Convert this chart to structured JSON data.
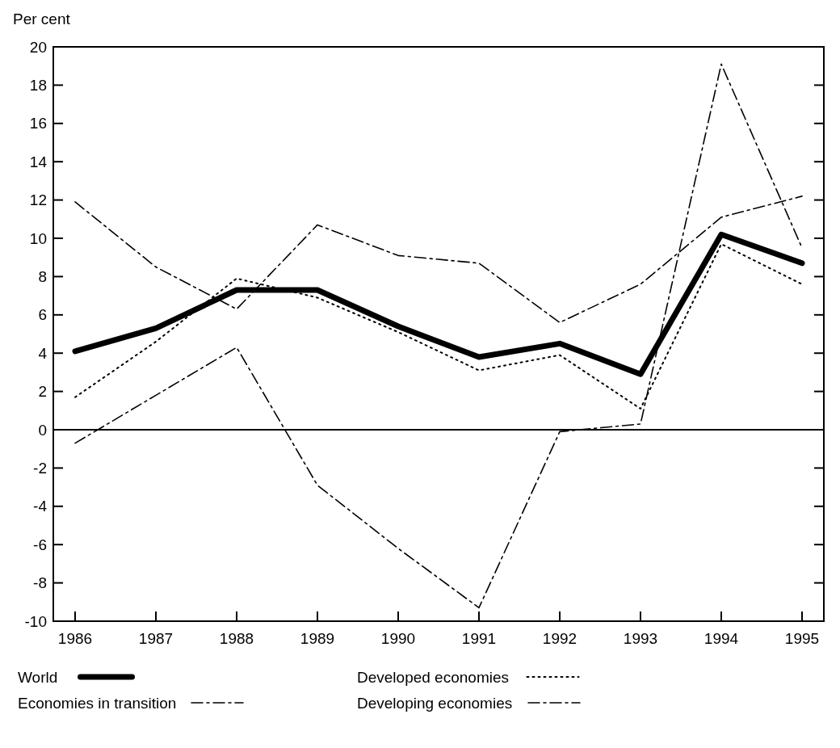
{
  "chart_data": {
    "type": "line",
    "ylabel": "Per cent",
    "categories": [
      "1986",
      "1987",
      "1988",
      "1989",
      "1990",
      "1991",
      "1992",
      "1993",
      "1994",
      "1995"
    ],
    "series": [
      {
        "name": "World",
        "color": "#000000",
        "line_style": "solid",
        "values": [
          4.1,
          5.3,
          7.3,
          7.3,
          5.4,
          3.8,
          4.5,
          2.9,
          10.2,
          8.7
        ]
      },
      {
        "name": "Developed economies",
        "color": "#000000",
        "line_style": "dotted",
        "values": [
          1.7,
          4.6,
          7.9,
          6.9,
          5.1,
          3.1,
          3.9,
          1.1,
          9.7,
          7.6
        ]
      },
      {
        "name": "Economies in transition",
        "color": "#000000",
        "line_style": "dashed",
        "values": [
          -0.7,
          1.8,
          4.3,
          -2.9,
          -6.2,
          -9.3,
          -0.1,
          0.3,
          19.1,
          9.5
        ]
      },
      {
        "name": "Developing economies",
        "color": "#000000",
        "line_style": "dashed",
        "values": [
          11.9,
          8.5,
          6.3,
          10.7,
          9.1,
          8.7,
          5.6,
          7.6,
          11.1,
          12.2
        ]
      }
    ],
    "ylim": [
      -10,
      20
    ],
    "yticks": [
      -10,
      -8,
      -6,
      -4,
      -2,
      0,
      2,
      4,
      6,
      8,
      10,
      12,
      14,
      16,
      18,
      20
    ],
    "ref_lines": [
      {
        "axis": "y",
        "value": 0
      }
    ],
    "grid": false,
    "legend": "bottom",
    "marker": "none"
  }
}
